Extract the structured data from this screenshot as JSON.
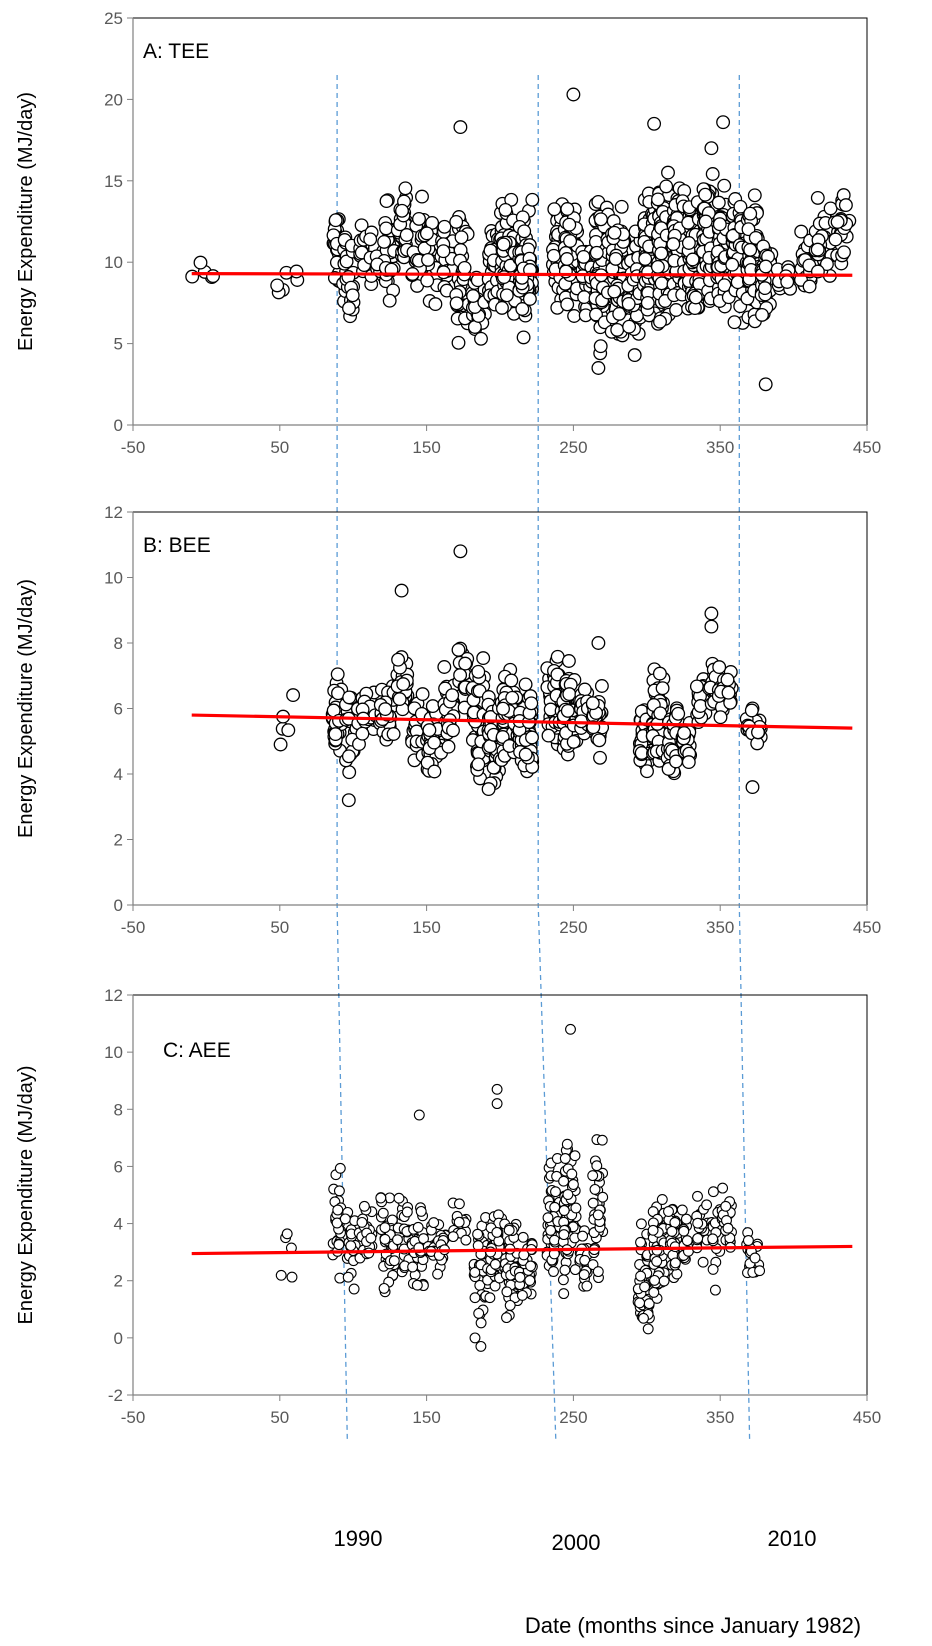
{
  "chart_data": [
    {
      "type": "scatter",
      "title": "A: TEE",
      "ylabel": "Energy Expenditure (MJ/day)",
      "xlim": [
        -50,
        450
      ],
      "ylim": [
        0,
        25
      ],
      "xticks": [
        "-50",
        "50",
        "150",
        "250",
        "350",
        "450"
      ],
      "yticks": [
        "0",
        "5",
        "10",
        "15",
        "20",
        "25"
      ],
      "trendline": {
        "x": [
          -10,
          440
        ],
        "y": [
          9.3,
          9.2
        ],
        "color": "#ff0000"
      },
      "year_marks": [
        89,
        226,
        363
      ],
      "clusters": [
        {
          "x": [
            -10,
            5
          ],
          "y": [
            8.2,
            10.5
          ],
          "n": 5
        },
        {
          "x": [
            48,
            62
          ],
          "y": [
            6,
            11.5
          ],
          "n": 6
        },
        {
          "x": [
            86,
            91
          ],
          "y": [
            7,
            15
          ],
          "n": 30
        },
        {
          "x": [
            93,
            101
          ],
          "y": [
            5,
            13.5
          ],
          "n": 25
        },
        {
          "x": [
            103,
            113
          ],
          "y": [
            8,
            13
          ],
          "n": 20
        },
        {
          "x": [
            116,
            128
          ],
          "y": [
            6.5,
            15
          ],
          "n": 35
        },
        {
          "x": [
            130,
            137
          ],
          "y": [
            8.5,
            15
          ],
          "n": 35
        },
        {
          "x": [
            140,
            158
          ],
          "y": [
            5.5,
            15
          ],
          "n": 40
        },
        {
          "x": [
            160,
            168
          ],
          "y": [
            7.5,
            13
          ],
          "n": 20
        },
        {
          "x": [
            170,
            179
          ],
          "y": [
            4,
            14.5
          ],
          "n": 30
        },
        {
          "x": [
            181,
            190
          ],
          "y": [
            4.5,
            11
          ],
          "n": 30
        },
        {
          "x": [
            192,
            199
          ],
          "y": [
            5,
            14
          ],
          "n": 45
        },
        {
          "x": [
            200,
            211
          ],
          "y": [
            5,
            15.5
          ],
          "n": 70
        },
        {
          "x": [
            213,
            222
          ],
          "y": [
            5,
            14.5
          ],
          "n": 70
        },
        {
          "x": [
            236,
            243
          ],
          "y": [
            6,
            14.5
          ],
          "n": 50
        },
        {
          "x": [
            244,
            253
          ],
          "y": [
            6,
            15
          ],
          "n": 60
        },
        {
          "x": [
            256,
            263
          ],
          "y": [
            5,
            12.5
          ],
          "n": 35
        },
        {
          "x": [
            265,
            274
          ],
          "y": [
            3.5,
            16
          ],
          "n": 80
        },
        {
          "x": [
            276,
            285
          ],
          "y": [
            4,
            15
          ],
          "n": 60
        },
        {
          "x": [
            287,
            296
          ],
          "y": [
            3.8,
            13
          ],
          "n": 50
        },
        {
          "x": [
            298,
            306
          ],
          "y": [
            5,
            16
          ],
          "n": 80
        },
        {
          "x": [
            307,
            316
          ],
          "y": [
            4.5,
            16.5
          ],
          "n": 90
        },
        {
          "x": [
            318,
            326
          ],
          "y": [
            5.5,
            16
          ],
          "n": 70
        },
        {
          "x": [
            328,
            336
          ],
          "y": [
            5.5,
            15.5
          ],
          "n": 80
        },
        {
          "x": [
            338,
            346
          ],
          "y": [
            6,
            17
          ],
          "n": 80
        },
        {
          "x": [
            348,
            356
          ],
          "y": [
            6,
            15.5
          ],
          "n": 90
        },
        {
          "x": [
            358,
            366
          ],
          "y": [
            5.5,
            15.5
          ],
          "n": 80
        },
        {
          "x": [
            368,
            376
          ],
          "y": [
            5.5,
            15
          ],
          "n": 70
        },
        {
          "x": [
            378,
            385
          ],
          "y": [
            5.5,
            12.5
          ],
          "n": 40
        },
        {
          "x": [
            388,
            398
          ],
          "y": [
            7,
            11
          ],
          "n": 15
        },
        {
          "x": [
            405,
            412
          ],
          "y": [
            7,
            12.5
          ],
          "n": 20
        },
        {
          "x": [
            415,
            426
          ],
          "y": [
            8,
            14.5
          ],
          "n": 30
        },
        {
          "x": [
            428,
            438
          ],
          "y": [
            8.5,
            15
          ],
          "n": 25
        }
      ],
      "outliers": [
        [
          250,
          20.3
        ],
        [
          352,
          18.6
        ],
        [
          305,
          18.5
        ],
        [
          173,
          18.3
        ],
        [
          344,
          17.0
        ],
        [
          381,
          2.5
        ],
        [
          267,
          3.5
        ]
      ]
    },
    {
      "type": "scatter",
      "title": "B: BEE",
      "ylabel": "Energy Expenditure (MJ/day)",
      "xlim": [
        -50,
        450
      ],
      "ylim": [
        0,
        12
      ],
      "xticks": [
        "-50",
        "50",
        "150",
        "250",
        "350",
        "450"
      ],
      "yticks": [
        "0",
        "2",
        "4",
        "6",
        "8",
        "10",
        "12"
      ],
      "trendline": {
        "x": [
          -10,
          440
        ],
        "y": [
          5.8,
          5.4
        ],
        "color": "#ff0000"
      },
      "year_marks": [
        89,
        226,
        363
      ],
      "clusters": [
        {
          "x": [
            48,
            62
          ],
          "y": [
            4.8,
            6.5
          ],
          "n": 5
        },
        {
          "x": [
            86,
            93
          ],
          "y": [
            4,
            7.3
          ],
          "n": 35
        },
        {
          "x": [
            95,
            104
          ],
          "y": [
            3.8,
            7
          ],
          "n": 30
        },
        {
          "x": [
            106,
            115
          ],
          "y": [
            5,
            7
          ],
          "n": 20
        },
        {
          "x": [
            118,
            128
          ],
          "y": [
            4.8,
            7
          ],
          "n": 35
        },
        {
          "x": [
            130,
            137
          ],
          "y": [
            5.5,
            8
          ],
          "n": 35
        },
        {
          "x": [
            140,
            148
          ],
          "y": [
            4,
            6.8
          ],
          "n": 30
        },
        {
          "x": [
            150,
            160
          ],
          "y": [
            3.6,
            6.5
          ],
          "n": 35
        },
        {
          "x": [
            162,
            169
          ],
          "y": [
            4.5,
            7.7
          ],
          "n": 25
        },
        {
          "x": [
            171,
            178
          ],
          "y": [
            5.5,
            8.3
          ],
          "n": 20
        },
        {
          "x": [
            181,
            190
          ],
          "y": [
            3.2,
            7.8
          ],
          "n": 40
        },
        {
          "x": [
            192,
            200
          ],
          "y": [
            3.2,
            7
          ],
          "n": 50
        },
        {
          "x": [
            201,
            212
          ],
          "y": [
            3.5,
            7.4
          ],
          "n": 70
        },
        {
          "x": [
            213,
            222
          ],
          "y": [
            3.5,
            7
          ],
          "n": 60
        },
        {
          "x": [
            232,
            242
          ],
          "y": [
            4.2,
            7.9
          ],
          "n": 60
        },
        {
          "x": [
            243,
            252
          ],
          "y": [
            4.1,
            7.9
          ],
          "n": 70
        },
        {
          "x": [
            254,
            260
          ],
          "y": [
            4.5,
            7
          ],
          "n": 25
        },
        {
          "x": [
            263,
            270
          ],
          "y": [
            4,
            7
          ],
          "n": 30
        },
        {
          "x": [
            295,
            302
          ],
          "y": [
            3.8,
            6.4
          ],
          "n": 50
        },
        {
          "x": [
            304,
            312
          ],
          "y": [
            3.8,
            7.6
          ],
          "n": 60
        },
        {
          "x": [
            314,
            322
          ],
          "y": [
            3.3,
            6.6
          ],
          "n": 40
        },
        {
          "x": [
            324,
            330
          ],
          "y": [
            3.5,
            6.5
          ],
          "n": 20
        },
        {
          "x": [
            334,
            340
          ],
          "y": [
            5.2,
            7.6
          ],
          "n": 20
        },
        {
          "x": [
            342,
            347
          ],
          "y": [
            6,
            7.5
          ],
          "n": 15
        },
        {
          "x": [
            349,
            358
          ],
          "y": [
            5.6,
            7.6
          ],
          "n": 25
        },
        {
          "x": [
            368,
            378
          ],
          "y": [
            4.6,
            6.3
          ],
          "n": 20
        }
      ],
      "outliers": [
        [
          173,
          10.8
        ],
        [
          133,
          9.6
        ],
        [
          344,
          8.9
        ],
        [
          344,
          8.5
        ],
        [
          97,
          3.2
        ],
        [
          372,
          3.6
        ],
        [
          267,
          8.0
        ]
      ]
    },
    {
      "type": "scatter",
      "title": "C: AEE",
      "ylabel": "Energy Expenditure (MJ/day)",
      "xlim": [
        -50,
        450
      ],
      "ylim": [
        -2,
        12
      ],
      "xticks": [
        "-50",
        "50",
        "150",
        "250",
        "350",
        "450"
      ],
      "yticks": [
        "-2",
        "0",
        "2",
        "4",
        "6",
        "8",
        "10",
        "12"
      ],
      "trendline": {
        "x": [
          -10,
          440
        ],
        "y": [
          2.95,
          3.2
        ],
        "color": "#ff0000"
      },
      "year_marks": [
        96,
        238,
        370
      ],
      "clusters": [
        {
          "x": [
            48,
            62
          ],
          "y": [
            0.6,
            4.8
          ],
          "n": 5
        },
        {
          "x": [
            86,
            92
          ],
          "y": [
            1.7,
            6.4
          ],
          "n": 30
        },
        {
          "x": [
            94,
            102
          ],
          "y": [
            0.5,
            5
          ],
          "n": 20
        },
        {
          "x": [
            104,
            114
          ],
          "y": [
            2,
            5.2
          ],
          "n": 20
        },
        {
          "x": [
            118,
            128
          ],
          "y": [
            0.9,
            6.2
          ],
          "n": 35
        },
        {
          "x": [
            130,
            138
          ],
          "y": [
            1.6,
            6
          ],
          "n": 30
        },
        {
          "x": [
            140,
            148
          ],
          "y": [
            1.2,
            5
          ],
          "n": 30
        },
        {
          "x": [
            151,
            163
          ],
          "y": [
            2,
            4.5
          ],
          "n": 35
        },
        {
          "x": [
            168,
            177
          ],
          "y": [
            3,
            5
          ],
          "n": 15
        },
        {
          "x": [
            182,
            192
          ],
          "y": [
            -0.3,
            5
          ],
          "n": 40
        },
        {
          "x": [
            193,
            202
          ],
          "y": [
            1,
            5.2
          ],
          "n": 45
        },
        {
          "x": [
            203,
            212
          ],
          "y": [
            0.5,
            4.3
          ],
          "n": 60
        },
        {
          "x": [
            213,
            222
          ],
          "y": [
            1,
            4.2
          ],
          "n": 40
        },
        {
          "x": [
            232,
            242
          ],
          "y": [
            1.5,
            7
          ],
          "n": 55
        },
        {
          "x": [
            243,
            252
          ],
          "y": [
            0.6,
            7.9
          ],
          "n": 60
        },
        {
          "x": [
            254,
            260
          ],
          "y": [
            1.2,
            4
          ],
          "n": 20
        },
        {
          "x": [
            263,
            270
          ],
          "y": [
            1,
            7.5
          ],
          "n": 40
        },
        {
          "x": [
            294,
            302
          ],
          "y": [
            -0.3,
            4.5
          ],
          "n": 45
        },
        {
          "x": [
            304,
            312
          ],
          "y": [
            1,
            5.6
          ],
          "n": 50
        },
        {
          "x": [
            314,
            322
          ],
          "y": [
            1.5,
            5.2
          ],
          "n": 30
        },
        {
          "x": [
            324,
            330
          ],
          "y": [
            2,
            5.2
          ],
          "n": 15
        },
        {
          "x": [
            334,
            342
          ],
          "y": [
            2.2,
            6.1
          ],
          "n": 20
        },
        {
          "x": [
            344,
            350
          ],
          "y": [
            1.3,
            6
          ],
          "n": 15
        },
        {
          "x": [
            351,
            358
          ],
          "y": [
            1.8,
            6.1
          ],
          "n": 25
        },
        {
          "x": [
            368,
            378
          ],
          "y": [
            1.3,
            4.3
          ],
          "n": 20
        }
      ],
      "outliers": [
        [
          198,
          8.7
        ],
        [
          198,
          8.2
        ],
        [
          248,
          10.8
        ],
        [
          145,
          7.8
        ],
        [
          187,
          -0.3
        ],
        [
          183,
          0.0
        ]
      ]
    }
  ],
  "annotations": {
    "years": [
      {
        "label": "1990",
        "x": 96
      },
      {
        "label": "2000",
        "x": 238
      },
      {
        "label": "2010",
        "x": 370
      }
    ],
    "x_title": "Date  (months since January 1982)"
  },
  "colors": {
    "marker_edge": "#000000",
    "trendline": "#ff0000",
    "year_line": "#5b9bd5",
    "axis": "#808080",
    "tick_text": "#595959"
  }
}
